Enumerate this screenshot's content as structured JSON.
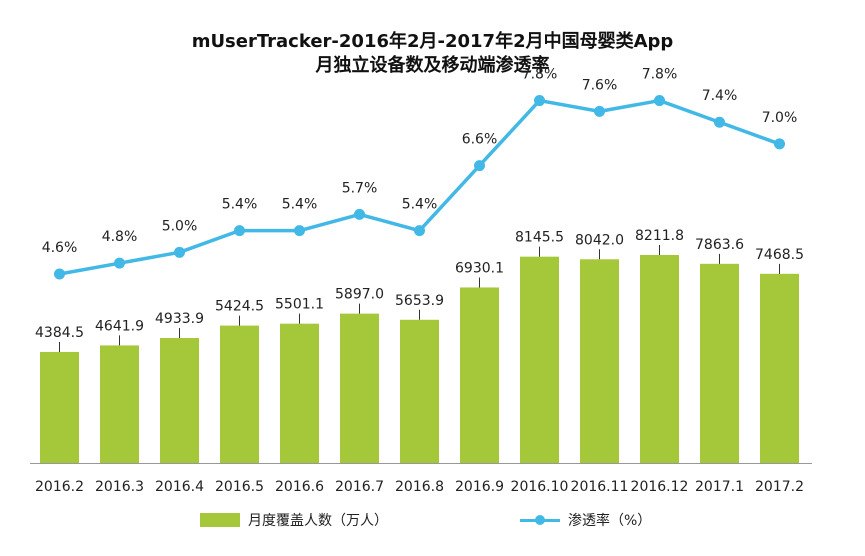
{
  "chart_data": {
    "type": "bar",
    "title_line1": "mUserTracker-2016年2月-2017年2月中国母婴类App",
    "title_line2": "月独立设备数及移动端渗透率",
    "categories": [
      "2016.2",
      "2016.3",
      "2016.4",
      "2016.5",
      "2016.6",
      "2016.7",
      "2016.8",
      "2016.9",
      "2016.10",
      "2016.11",
      "2016.12",
      "2017.1",
      "2017.2"
    ],
    "series": [
      {
        "name": "月度覆盖人数（万人）",
        "type": "bar",
        "values": [
          4384.5,
          4641.9,
          4933.9,
          5424.5,
          5501.1,
          5897.0,
          5653.9,
          6930.1,
          8145.5,
          8042.0,
          8211.8,
          7863.6,
          7468.5
        ],
        "labels": [
          "4384.5",
          "4641.9",
          "4933.9",
          "5424.5",
          "5501.1",
          "5897.0",
          "5653.9",
          "6930.1",
          "8145.5",
          "8042.0",
          "8211.8",
          "7863.6",
          "7468.5"
        ],
        "color": "#a4c83a"
      },
      {
        "name": "渗透率（%）",
        "type": "line",
        "values": [
          4.6,
          4.8,
          5.0,
          5.4,
          5.4,
          5.7,
          5.4,
          6.6,
          7.8,
          7.6,
          7.8,
          7.4,
          7.0
        ],
        "labels": [
          "4.6%",
          "4.8%",
          "5.0%",
          "5.4%",
          "5.4%",
          "5.7%",
          "5.4%",
          "6.6%",
          "7.8%",
          "7.6%",
          "7.8%",
          "7.4%",
          "7.0%"
        ],
        "color": "#42b8e7"
      }
    ],
    "grid": false,
    "legend_position": "bottom"
  }
}
